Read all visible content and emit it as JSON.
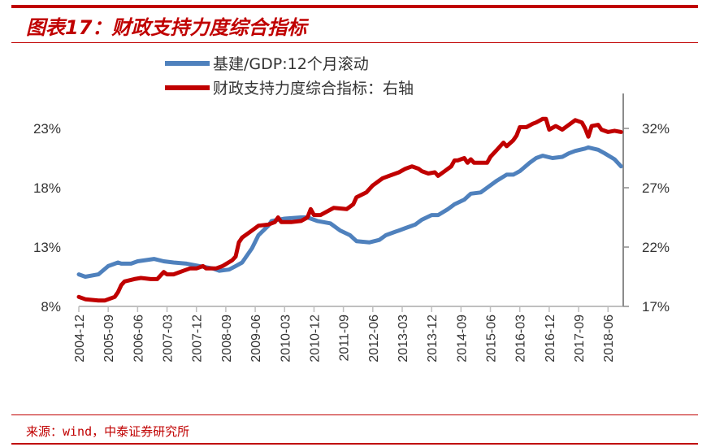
{
  "header": {
    "title": "图表17：财政支持力度综合指标"
  },
  "footer": {
    "source": "来源：wind，中泰证券研究所"
  },
  "chart_data": {
    "type": "line",
    "title": "",
    "left_axis": {
      "ticks": [
        "8%",
        "13%",
        "18%",
        "23%"
      ],
      "range": [
        8,
        23
      ]
    },
    "right_axis": {
      "ticks": [
        "17%",
        "22%",
        "27%",
        "32%"
      ],
      "range": [
        17,
        32
      ]
    },
    "x_ticks": [
      "2004-12",
      "2005-09",
      "2006-06",
      "2007-03",
      "2007-12",
      "2008-09",
      "2009-06",
      "2010-03",
      "2010-12",
      "2011-09",
      "2012-06",
      "2013-03",
      "2013-12",
      "2014-09",
      "2015-06",
      "2016-03",
      "2016-12",
      "2017-09",
      "2018-06"
    ],
    "grid": false,
    "legend_position": "top",
    "series": [
      {
        "name": "基建/GDP:12个月滚动",
        "axis": "left",
        "color": "#4f81bd",
        "points": [
          [
            "2004-12",
            10.7
          ],
          [
            "2005-02",
            10.5
          ],
          [
            "2005-06",
            10.7
          ],
          [
            "2005-09",
            11.4
          ],
          [
            "2005-12",
            11.7
          ],
          [
            "2006-01",
            11.6
          ],
          [
            "2006-04",
            11.6
          ],
          [
            "2006-06",
            11.8
          ],
          [
            "2006-11",
            12.0
          ],
          [
            "2007-02",
            11.8
          ],
          [
            "2007-05",
            11.7
          ],
          [
            "2007-09",
            11.6
          ],
          [
            "2008-01",
            11.4
          ],
          [
            "2008-05",
            11.2
          ],
          [
            "2008-07",
            11.0
          ],
          [
            "2008-10",
            11.1
          ],
          [
            "2008-12",
            11.4
          ],
          [
            "2009-02",
            11.7
          ],
          [
            "2009-05",
            12.9
          ],
          [
            "2009-07",
            14.0
          ],
          [
            "2009-10",
            14.8
          ],
          [
            "2009-11",
            15.2
          ],
          [
            "2010-03",
            15.4
          ],
          [
            "2010-08",
            15.5
          ],
          [
            "2010-10",
            15.5
          ],
          [
            "2011-01",
            15.2
          ],
          [
            "2011-05",
            15.0
          ],
          [
            "2011-08",
            14.4
          ],
          [
            "2011-11",
            14.0
          ],
          [
            "2012-01",
            13.5
          ],
          [
            "2012-05",
            13.4
          ],
          [
            "2012-08",
            13.6
          ],
          [
            "2012-10",
            14.0
          ],
          [
            "2013-01",
            14.3
          ],
          [
            "2013-02",
            14.4
          ],
          [
            "2013-04",
            14.6
          ],
          [
            "2013-07",
            14.9
          ],
          [
            "2013-09",
            15.3
          ],
          [
            "2013-12",
            15.7
          ],
          [
            "2014-02",
            15.7
          ],
          [
            "2014-05",
            16.2
          ],
          [
            "2014-07",
            16.6
          ],
          [
            "2014-10",
            17.0
          ],
          [
            "2014-12",
            17.5
          ],
          [
            "2015-03",
            17.6
          ],
          [
            "2015-05",
            18.0
          ],
          [
            "2015-08",
            18.6
          ],
          [
            "2015-11",
            19.1
          ],
          [
            "2016-01",
            19.1
          ],
          [
            "2016-03",
            19.4
          ],
          [
            "2016-06",
            20.1
          ],
          [
            "2016-08",
            20.5
          ],
          [
            "2016-10",
            20.7
          ],
          [
            "2017-01",
            20.5
          ],
          [
            "2017-04",
            20.6
          ],
          [
            "2017-06",
            20.9
          ],
          [
            "2017-08",
            21.1
          ],
          [
            "2017-11",
            21.3
          ],
          [
            "2017-12",
            21.4
          ],
          [
            "2018-03",
            21.2
          ],
          [
            "2018-05",
            20.9
          ],
          [
            "2018-08",
            20.4
          ],
          [
            "2018-10",
            19.8
          ]
        ]
      },
      {
        "name": "财政支持力度综合指标：右轴",
        "axis": "right",
        "color": "#c00000",
        "points": [
          [
            "2004-12",
            17.8
          ],
          [
            "2005-02",
            17.6
          ],
          [
            "2005-06",
            17.5
          ],
          [
            "2005-08",
            17.5
          ],
          [
            "2005-11",
            17.8
          ],
          [
            "2005-12",
            18.2
          ],
          [
            "2006-01",
            18.8
          ],
          [
            "2006-02",
            19.1
          ],
          [
            "2006-05",
            19.3
          ],
          [
            "2006-07",
            19.4
          ],
          [
            "2006-10",
            19.3
          ],
          [
            "2006-12",
            19.3
          ],
          [
            "2007-02",
            19.9
          ],
          [
            "2007-03",
            19.7
          ],
          [
            "2007-05",
            19.7
          ],
          [
            "2007-08",
            20.0
          ],
          [
            "2007-10",
            20.2
          ],
          [
            "2007-12",
            20.2
          ],
          [
            "2008-02",
            20.4
          ],
          [
            "2008-03",
            20.2
          ],
          [
            "2008-06",
            20.2
          ],
          [
            "2008-08",
            20.4
          ],
          [
            "2008-11",
            20.9
          ],
          [
            "2008-12",
            21.2
          ],
          [
            "2009-01",
            22.4
          ],
          [
            "2009-02",
            22.8
          ],
          [
            "2009-05",
            23.4
          ],
          [
            "2009-07",
            23.8
          ],
          [
            "2009-10",
            23.9
          ],
          [
            "2009-12",
            24.1
          ],
          [
            "2010-01",
            24.5
          ],
          [
            "2010-02",
            24.1
          ],
          [
            "2010-05",
            24.1
          ],
          [
            "2010-08",
            24.2
          ],
          [
            "2010-10",
            24.5
          ],
          [
            "2010-11",
            25.2
          ],
          [
            "2010-12",
            24.7
          ],
          [
            "2011-02",
            24.7
          ],
          [
            "2011-06",
            25.3
          ],
          [
            "2011-10",
            25.2
          ],
          [
            "2011-12",
            25.6
          ],
          [
            "2012-01",
            26.2
          ],
          [
            "2012-04",
            26.6
          ],
          [
            "2012-06",
            27.2
          ],
          [
            "2012-09",
            27.8
          ],
          [
            "2012-11",
            28.0
          ],
          [
            "2013-02",
            28.3
          ],
          [
            "2013-04",
            28.6
          ],
          [
            "2013-06",
            28.8
          ],
          [
            "2013-08",
            28.6
          ],
          [
            "2013-09",
            28.4
          ],
          [
            "2013-11",
            28.2
          ],
          [
            "2014-01",
            28.3
          ],
          [
            "2014-02",
            28.0
          ],
          [
            "2014-04",
            28.4
          ],
          [
            "2014-06",
            28.8
          ],
          [
            "2014-07",
            29.3
          ],
          [
            "2014-08",
            29.3
          ],
          [
            "2014-10",
            29.5
          ],
          [
            "2014-11",
            29.1
          ],
          [
            "2014-12",
            29.4
          ],
          [
            "2015-01",
            29.1
          ],
          [
            "2015-05",
            29.1
          ],
          [
            "2015-06",
            29.6
          ],
          [
            "2015-08",
            30.2
          ],
          [
            "2015-10",
            30.8
          ],
          [
            "2015-11",
            30.5
          ],
          [
            "2016-01",
            31.0
          ],
          [
            "2016-02",
            31.4
          ],
          [
            "2016-03",
            32.1
          ],
          [
            "2016-05",
            32.1
          ],
          [
            "2016-07",
            32.4
          ],
          [
            "2016-08",
            32.5
          ],
          [
            "2016-10",
            32.8
          ],
          [
            "2016-11",
            32.8
          ],
          [
            "2016-12",
            31.9
          ],
          [
            "2017-02",
            32.2
          ],
          [
            "2017-04",
            31.9
          ],
          [
            "2017-06",
            32.3
          ],
          [
            "2017-08",
            32.7
          ],
          [
            "2017-10",
            32.5
          ],
          [
            "2017-11",
            32.0
          ],
          [
            "2017-12",
            31.3
          ],
          [
            "2018-01",
            32.2
          ],
          [
            "2018-03",
            32.3
          ],
          [
            "2018-04",
            31.9
          ],
          [
            "2018-06",
            31.7
          ],
          [
            "2018-08",
            31.8
          ],
          [
            "2018-10",
            31.7
          ]
        ]
      }
    ]
  }
}
